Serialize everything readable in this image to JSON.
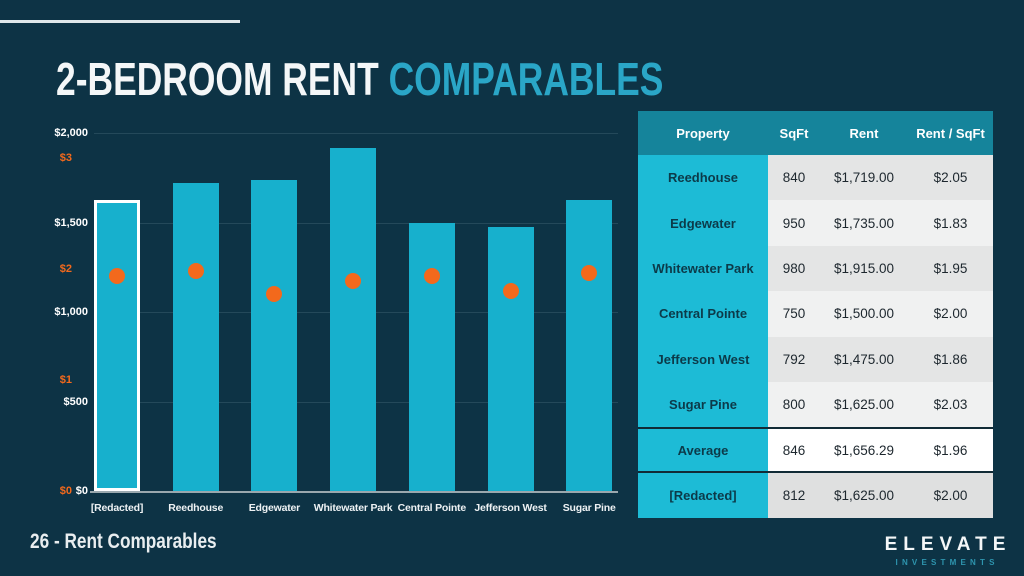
{
  "slide": {
    "title": {
      "main": "2-BEDROOM RENT ",
      "accent": "COMPARABLES"
    },
    "footer": {
      "label": "26 - Rent Comparables"
    },
    "logo": {
      "name": "ELEVATE",
      "sub": "INVESTMENTS"
    }
  },
  "colors": {
    "background": "#0d3345",
    "title_accent": "#2aa6c7",
    "table_header_bg": "#15849b",
    "property_column_bg": "#1dbbd6"
  },
  "chart_data": {
    "type": "bar",
    "title": "",
    "xlabel": "",
    "ylabel": "",
    "grid": true,
    "legend_position": "none",
    "categories": [
      "[Redacted]",
      "Reedhouse",
      "Edgewater",
      "Whitewater Park",
      "Central Pointe",
      "Jefferson West",
      "Sugar Pine"
    ],
    "series": [
      {
        "name": "Rent",
        "type": "bar",
        "color": "#17b0cd",
        "values": [
          1625,
          1719,
          1735,
          1915,
          1500,
          1475,
          1625
        ]
      },
      {
        "name": "Rent / SqFt",
        "type": "scatter",
        "color": "#f3691c",
        "values": [
          2.0,
          2.05,
          1.83,
          1.95,
          2.0,
          1.86,
          2.03
        ]
      }
    ],
    "highlight_category": "[Redacted]",
    "highlight_border_color": "#ffffff",
    "y_axis_left": {
      "color": "#ffffff",
      "range": [
        0,
        2000
      ],
      "ticks": [
        {
          "label": "$2,000",
          "value": 2000
        },
        {
          "label": "$1,500",
          "value": 1500
        },
        {
          "label": "$1,000",
          "value": 1000
        },
        {
          "label": "$500",
          "value": 500
        },
        {
          "label": "$0",
          "value": 0
        }
      ]
    },
    "y_axis_rent_per_sqft": {
      "color": "#f3691c",
      "range": [
        0,
        3.25
      ],
      "ticks": [
        {
          "label": "$3",
          "value": 3
        },
        {
          "label": "$2",
          "value": 2
        },
        {
          "label": "$1",
          "value": 1
        },
        {
          "label": "$0",
          "value": 0
        }
      ]
    }
  },
  "table": {
    "headers": [
      "Property",
      "SqFt",
      "Rent",
      "Rent / SqFt"
    ],
    "rows": [
      {
        "property": "Reedhouse",
        "sqft": "840",
        "rent": "$1,719.00",
        "rent_sqft": "$2.05",
        "style": "odd"
      },
      {
        "property": "Edgewater",
        "sqft": "950",
        "rent": "$1,735.00",
        "rent_sqft": "$1.83",
        "style": "even"
      },
      {
        "property": "Whitewater Park",
        "sqft": "980",
        "rent": "$1,915.00",
        "rent_sqft": "$1.95",
        "style": "odd"
      },
      {
        "property": "Central Pointe",
        "sqft": "750",
        "rent": "$1,500.00",
        "rent_sqft": "$2.00",
        "style": "even"
      },
      {
        "property": "Jefferson West",
        "sqft": "792",
        "rent": "$1,475.00",
        "rent_sqft": "$1.86",
        "style": "odd"
      },
      {
        "property": "Sugar Pine",
        "sqft": "800",
        "rent": "$1,625.00",
        "rent_sqft": "$2.03",
        "style": "even"
      },
      {
        "property": "Average",
        "sqft": "846",
        "rent": "$1,656.29",
        "rent_sqft": "$1.96",
        "style": "average"
      },
      {
        "property": "[Redacted]",
        "sqft": "812",
        "rent": "$1,625.00",
        "rent_sqft": "$2.00",
        "style": "last"
      }
    ]
  }
}
